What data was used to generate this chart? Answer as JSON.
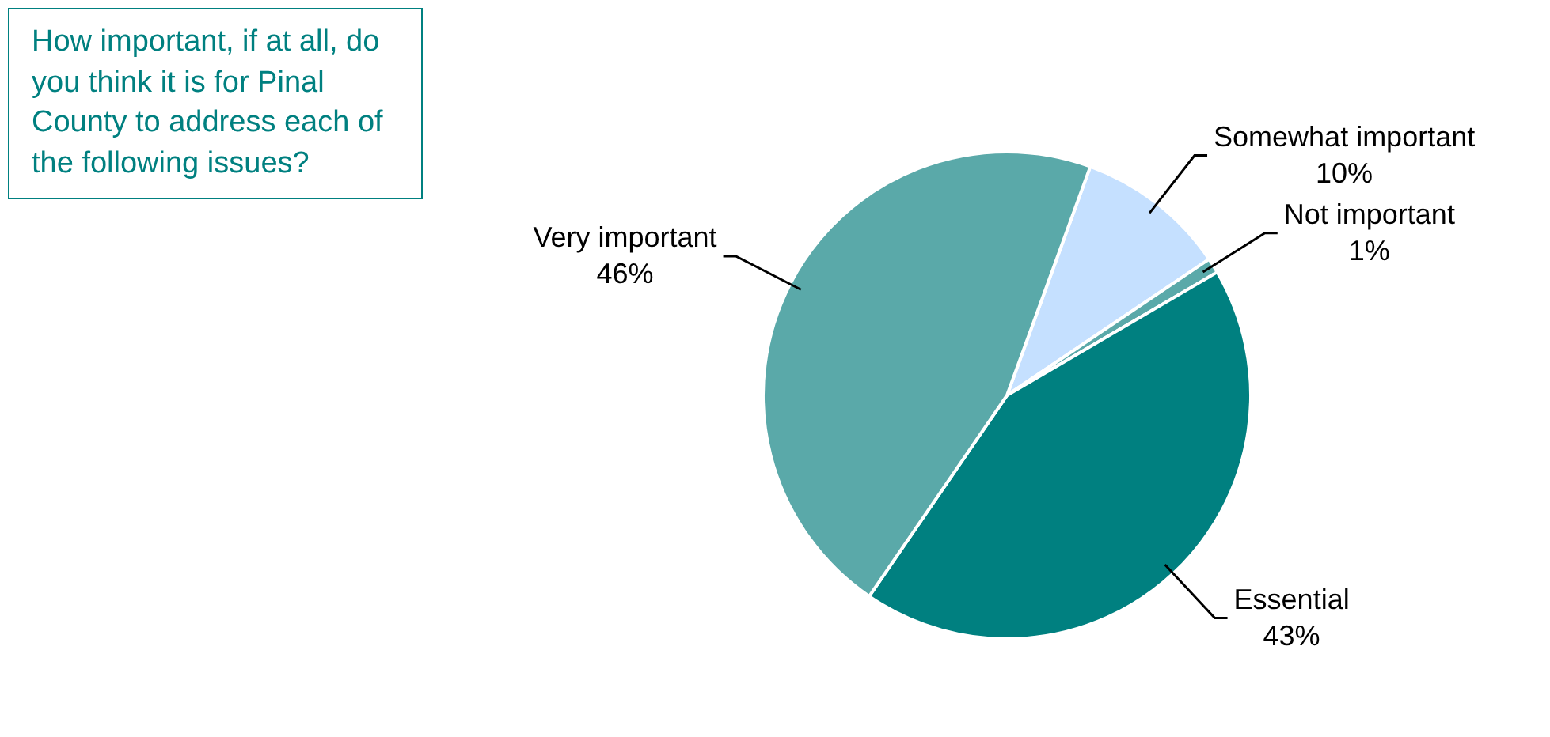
{
  "chart_data": {
    "type": "pie",
    "title": "How important, if at all, do you think it is for Pinal County to address each of the following issues?",
    "categories": [
      "Somewhat important",
      "Not important",
      "Essential",
      "Very important"
    ],
    "values": [
      10,
      1,
      43,
      46
    ],
    "colors": [
      "#c5e0ff",
      "#5aa9a9",
      "#008080",
      "#5aa9a9"
    ],
    "value_labels": [
      "10%",
      "1%",
      "43%",
      "46%"
    ],
    "legend": false
  }
}
